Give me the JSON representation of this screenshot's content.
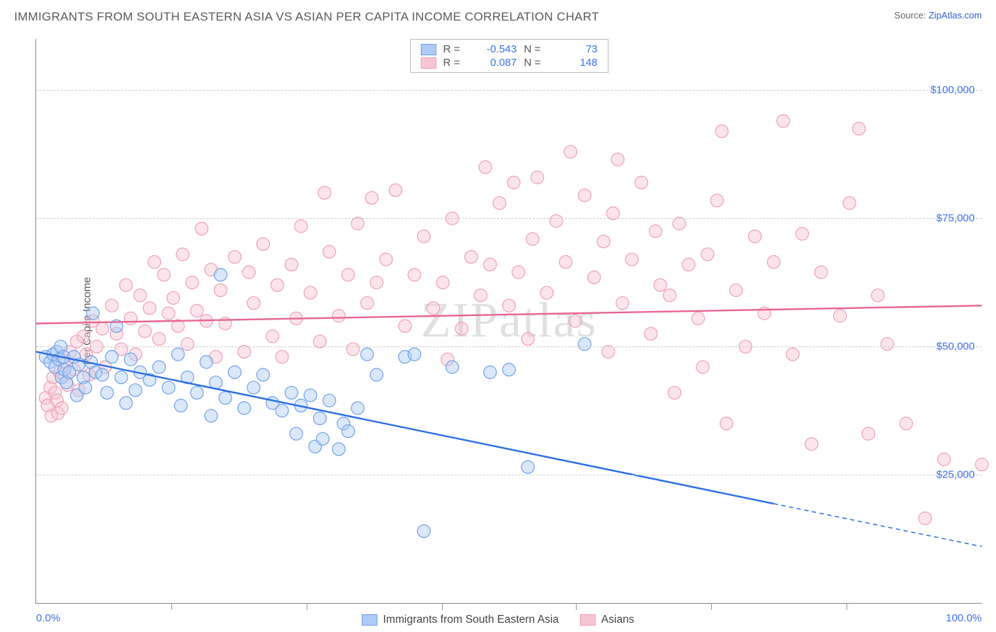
{
  "title": "IMMIGRANTS FROM SOUTH EASTERN ASIA VS ASIAN PER CAPITA INCOME CORRELATION CHART",
  "source_label": "Source:",
  "source_name": "ZipAtlas.com",
  "watermark": "ZIPatlas",
  "chart": {
    "type": "scatter",
    "ylabel": "Per Capita Income",
    "xlim": [
      0,
      100
    ],
    "ylim": [
      0,
      110000
    ],
    "xtick_labels": [
      "0.0%",
      "100.0%"
    ],
    "xtick_positions": [
      0,
      100
    ],
    "xminor_ticks": [
      14.3,
      28.6,
      42.9,
      57.1,
      71.4,
      85.7
    ],
    "ytick_labels": [
      "$25,000",
      "$50,000",
      "$75,000",
      "$100,000"
    ],
    "ytick_values": [
      25000,
      50000,
      75000,
      100000
    ],
    "grid_color": "#cccccc",
    "background_color": "#ffffff",
    "text_color": "#3b71e8",
    "axis_label_color": "#555555",
    "marker_radius": 9,
    "marker_opacity": 0.45,
    "line_width": 2.4,
    "series": [
      {
        "name": "Immigrants from South Eastern Asia",
        "color_fill": "#aecbf5",
        "color_stroke": "#6fa1e9",
        "line_color": "#2a6fe0",
        "R": "-0.543",
        "N": "73",
        "trend": {
          "x1": 0,
          "y1": 49000,
          "x2": 100,
          "y2": 11000,
          "solid_until_x": 78
        },
        "points": [
          [
            1,
            48000
          ],
          [
            1.5,
            47000
          ],
          [
            1.8,
            48500
          ],
          [
            2,
            46000
          ],
          [
            2.2,
            49000
          ],
          [
            2.4,
            47500
          ],
          [
            2.6,
            50000
          ],
          [
            2.7,
            44000
          ],
          [
            2.9,
            48000
          ],
          [
            3,
            45500
          ],
          [
            3.2,
            43000
          ],
          [
            3.5,
            45000
          ],
          [
            4,
            48000
          ],
          [
            4.3,
            40500
          ],
          [
            4.5,
            46500
          ],
          [
            5,
            44000
          ],
          [
            5.2,
            42000
          ],
          [
            5.8,
            47000
          ],
          [
            6,
            56500
          ],
          [
            6.3,
            45000
          ],
          [
            7,
            44500
          ],
          [
            7.5,
            41000
          ],
          [
            8,
            48000
          ],
          [
            8.5,
            54000
          ],
          [
            9,
            44000
          ],
          [
            9.5,
            39000
          ],
          [
            10,
            47500
          ],
          [
            10.5,
            41500
          ],
          [
            11,
            45000
          ],
          [
            12,
            43500
          ],
          [
            13,
            46000
          ],
          [
            14,
            42000
          ],
          [
            15,
            48500
          ],
          [
            15.3,
            38500
          ],
          [
            16,
            44000
          ],
          [
            17,
            41000
          ],
          [
            18,
            47000
          ],
          [
            18.5,
            36500
          ],
          [
            19,
            43000
          ],
          [
            19.5,
            64000
          ],
          [
            20,
            40000
          ],
          [
            21,
            45000
          ],
          [
            22,
            38000
          ],
          [
            23,
            42000
          ],
          [
            24,
            44500
          ],
          [
            25,
            39000
          ],
          [
            26,
            37500
          ],
          [
            27,
            41000
          ],
          [
            27.5,
            33000
          ],
          [
            28,
            38500
          ],
          [
            29,
            40500
          ],
          [
            29.5,
            30500
          ],
          [
            30,
            36000
          ],
          [
            30.3,
            32000
          ],
          [
            31,
            39500
          ],
          [
            32,
            30000
          ],
          [
            32.5,
            35000
          ],
          [
            33,
            33500
          ],
          [
            34,
            38000
          ],
          [
            35,
            48500
          ],
          [
            36,
            44500
          ],
          [
            39,
            48000
          ],
          [
            40,
            48500
          ],
          [
            41,
            14000
          ],
          [
            44,
            46000
          ],
          [
            48,
            45000
          ],
          [
            50,
            45500
          ],
          [
            52,
            26500
          ],
          [
            58,
            50500
          ]
        ]
      },
      {
        "name": "Asians",
        "color_fill": "#f7c6d3",
        "color_stroke": "#ef9fb6",
        "line_color": "#e86693",
        "R": "0.087",
        "N": "148",
        "trend": {
          "x1": 0,
          "y1": 54500,
          "x2": 100,
          "y2": 58000,
          "solid_until_x": 100
        },
        "points": [
          [
            1,
            40000
          ],
          [
            1.2,
            38500
          ],
          [
            1.5,
            42000
          ],
          [
            1.6,
            36500
          ],
          [
            1.8,
            44000
          ],
          [
            2,
            41000
          ],
          [
            2.2,
            39500
          ],
          [
            2.3,
            37000
          ],
          [
            2.5,
            45000
          ],
          [
            2.7,
            38000
          ],
          [
            3,
            47000
          ],
          [
            3.3,
            42500
          ],
          [
            3.6,
            49000
          ],
          [
            4,
            45500
          ],
          [
            4.3,
            51000
          ],
          [
            4.5,
            41500
          ],
          [
            5,
            52000
          ],
          [
            5.3,
            48500
          ],
          [
            5.6,
            44500
          ],
          [
            6,
            55000
          ],
          [
            6.4,
            50000
          ],
          [
            7,
            53500
          ],
          [
            7.3,
            46000
          ],
          [
            8,
            58000
          ],
          [
            8.5,
            52500
          ],
          [
            9,
            49500
          ],
          [
            9.5,
            62000
          ],
          [
            10,
            55500
          ],
          [
            10.5,
            48500
          ],
          [
            11,
            60000
          ],
          [
            11.5,
            53000
          ],
          [
            12,
            57500
          ],
          [
            12.5,
            66500
          ],
          [
            13,
            51500
          ],
          [
            13.5,
            64000
          ],
          [
            14,
            56500
          ],
          [
            14.5,
            59500
          ],
          [
            15,
            54000
          ],
          [
            15.5,
            68000
          ],
          [
            16,
            50500
          ],
          [
            16.5,
            62500
          ],
          [
            17,
            57000
          ],
          [
            17.5,
            73000
          ],
          [
            18,
            55000
          ],
          [
            18.5,
            65000
          ],
          [
            19,
            48000
          ],
          [
            19.5,
            61000
          ],
          [
            20,
            54500
          ],
          [
            21,
            67500
          ],
          [
            22,
            49000
          ],
          [
            22.5,
            64500
          ],
          [
            23,
            58500
          ],
          [
            24,
            70000
          ],
          [
            25,
            52000
          ],
          [
            25.5,
            62000
          ],
          [
            26,
            48000
          ],
          [
            27,
            66000
          ],
          [
            27.5,
            55500
          ],
          [
            28,
            73500
          ],
          [
            29,
            60500
          ],
          [
            30,
            51000
          ],
          [
            30.5,
            80000
          ],
          [
            31,
            68500
          ],
          [
            32,
            56000
          ],
          [
            33,
            64000
          ],
          [
            33.5,
            49500
          ],
          [
            34,
            74000
          ],
          [
            35,
            58500
          ],
          [
            35.5,
            79000
          ],
          [
            36,
            62500
          ],
          [
            37,
            67000
          ],
          [
            38,
            80500
          ],
          [
            39,
            54000
          ],
          [
            40,
            64000
          ],
          [
            41,
            71500
          ],
          [
            42,
            57500
          ],
          [
            43,
            62500
          ],
          [
            43.5,
            47500
          ],
          [
            44,
            75000
          ],
          [
            45,
            53500
          ],
          [
            46,
            67500
          ],
          [
            47,
            60000
          ],
          [
            47.5,
            85000
          ],
          [
            48,
            66000
          ],
          [
            49,
            78000
          ],
          [
            50,
            58000
          ],
          [
            50.5,
            82000
          ],
          [
            51,
            64500
          ],
          [
            52,
            51500
          ],
          [
            52.5,
            71000
          ],
          [
            53,
            83000
          ],
          [
            54,
            60500
          ],
          [
            55,
            74500
          ],
          [
            56,
            66500
          ],
          [
            56.5,
            88000
          ],
          [
            57,
            55000
          ],
          [
            58,
            79500
          ],
          [
            59,
            63500
          ],
          [
            60,
            70500
          ],
          [
            60.5,
            49000
          ],
          [
            61,
            76000
          ],
          [
            61.5,
            86500
          ],
          [
            62,
            58500
          ],
          [
            63,
            67000
          ],
          [
            64,
            82000
          ],
          [
            65,
            52500
          ],
          [
            65.5,
            72500
          ],
          [
            66,
            62000
          ],
          [
            67,
            60000
          ],
          [
            67.5,
            41000
          ],
          [
            68,
            74000
          ],
          [
            69,
            66000
          ],
          [
            70,
            55500
          ],
          [
            70.5,
            46000
          ],
          [
            71,
            68000
          ],
          [
            72,
            78500
          ],
          [
            72.5,
            92000
          ],
          [
            73,
            35000
          ],
          [
            74,
            61000
          ],
          [
            75,
            50000
          ],
          [
            76,
            71500
          ],
          [
            77,
            56500
          ],
          [
            78,
            66500
          ],
          [
            79,
            94000
          ],
          [
            80,
            48500
          ],
          [
            81,
            72000
          ],
          [
            82,
            31000
          ],
          [
            83,
            64500
          ],
          [
            85,
            56000
          ],
          [
            86,
            78000
          ],
          [
            87,
            92500
          ],
          [
            88,
            33000
          ],
          [
            89,
            60000
          ],
          [
            90,
            50500
          ],
          [
            92,
            35000
          ],
          [
            94,
            16500
          ],
          [
            96,
            28000
          ],
          [
            100,
            27000
          ]
        ]
      }
    ]
  },
  "legend_bottom": [
    {
      "label": "Immigrants from South Eastern Asia",
      "swatch_fill": "#aecbf5",
      "swatch_stroke": "#6fa1e9"
    },
    {
      "label": "Asians",
      "swatch_fill": "#f7c6d3",
      "swatch_stroke": "#ef9fb6"
    }
  ]
}
